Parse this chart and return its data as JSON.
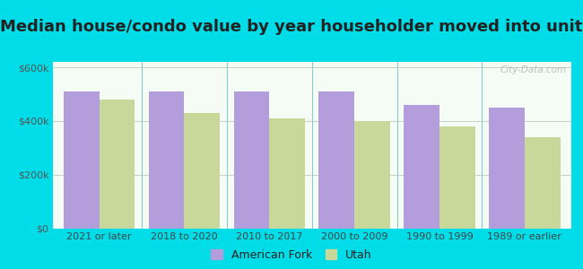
{
  "title": "Median house/condo value by year householder moved into unit",
  "categories": [
    "2021 or later",
    "2018 to 2020",
    "2010 to 2017",
    "2000 to 2009",
    "1990 to 1999",
    "1989 or earlier"
  ],
  "american_fork": [
    510000,
    510000,
    510000,
    510000,
    460000,
    450000
  ],
  "utah": [
    480000,
    430000,
    410000,
    400000,
    380000,
    340000
  ],
  "af_color": "#b39ddb",
  "utah_color": "#c8d89a",
  "background_outer": "#00dde8",
  "background_inner_top": "#f5fbf5",
  "background_inner_bottom": "#e8f5e8",
  "ylim": [
    0,
    620000
  ],
  "yticks": [
    0,
    200000,
    400000,
    600000
  ],
  "ytick_labels": [
    "$0",
    "$200k",
    "$400k",
    "$600k"
  ],
  "legend_af": "American Fork",
  "legend_utah": "Utah",
  "bar_width": 0.42,
  "title_fontsize": 13,
  "watermark": "City-Data.com"
}
